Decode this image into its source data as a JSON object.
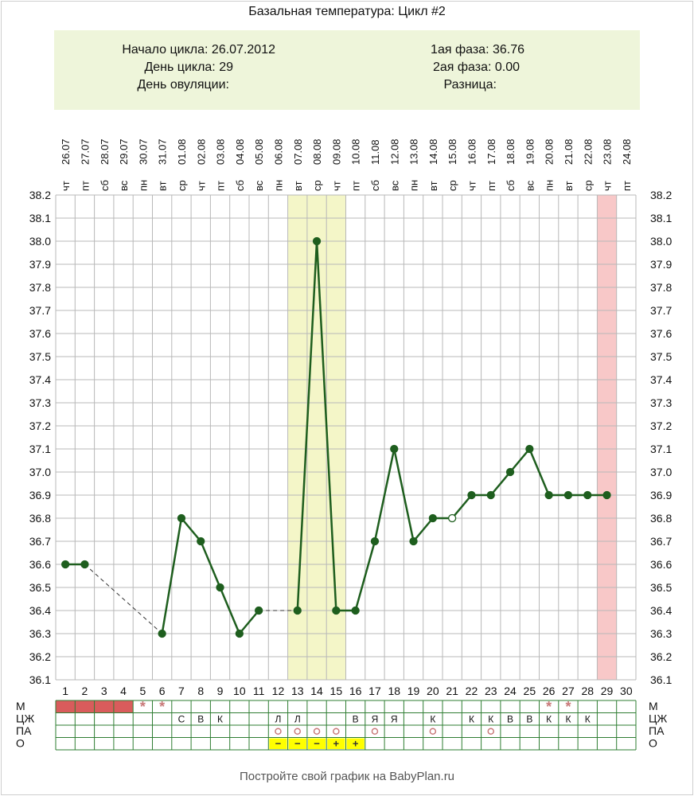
{
  "title": "Базальная температура: Цикл #2",
  "info": {
    "cycle_start": "Начало цикла: 26.07.2012",
    "cycle_day": "День цикла: 29",
    "ovulation_day": "День овуляции:",
    "phase1": "1ая фаза: 36.76",
    "phase2": "2ая фаза: 0.00",
    "difference": "Разница:"
  },
  "footer": "Постройте свой график на BabyPlan.ru",
  "colors": {
    "line": "#1e5e1e",
    "ovulation_band": "#f4f6c8",
    "today_band": "#f8c8c8",
    "menstruation": "#d95c5c",
    "marker": "#c97a7a",
    "o_marker_bg": "#ffff00",
    "grid": "#b8b8b8",
    "table_grid": "#2e7d32",
    "info_bg": "#eef5da"
  },
  "chart_data": {
    "type": "line",
    "x": [
      1,
      2,
      3,
      4,
      5,
      6,
      7,
      8,
      9,
      10,
      11,
      12,
      13,
      14,
      15,
      16,
      17,
      18,
      19,
      20,
      21,
      22,
      23,
      24,
      25,
      26,
      27,
      28,
      29,
      30
    ],
    "dates": [
      "26.07",
      "27.07",
      "28.07",
      "29.07",
      "30.07",
      "31.07",
      "01.08",
      "02.08",
      "03.08",
      "04.08",
      "05.08",
      "06.08",
      "07.08",
      "08.08",
      "09.08",
      "10.08",
      "11.08",
      "12.08",
      "13.08",
      "14.08",
      "15.08",
      "16.08",
      "17.08",
      "18.08",
      "19.08",
      "20.08",
      "21.08",
      "22.08",
      "23.08",
      "24.08"
    ],
    "weekdays": [
      "чт",
      "пт",
      "сб",
      "вс",
      "пн",
      "вт",
      "ср",
      "чт",
      "пт",
      "сб",
      "вс",
      "пн",
      "вт",
      "ср",
      "чт",
      "пт",
      "сб",
      "вс",
      "пн",
      "вт",
      "ср",
      "чт",
      "пт",
      "сб",
      "вс",
      "пн",
      "вт",
      "ср",
      "чт",
      "пт"
    ],
    "series": [
      {
        "values": [
          36.6,
          36.6,
          null,
          null,
          null,
          36.3,
          36.8,
          36.7,
          36.5,
          36.3,
          36.4,
          null,
          36.4,
          38.0,
          36.4,
          36.4,
          36.7,
          37.1,
          36.7,
          36.8,
          36.8,
          36.9,
          36.9,
          37.0,
          37.1,
          36.9,
          36.9,
          36.9,
          36.9,
          null
        ]
      }
    ],
    "open_points": [
      21
    ],
    "ylim": [
      36.1,
      38.2
    ],
    "yticks": [
      "36.1",
      "36.2",
      "36.3",
      "36.4",
      "36.5",
      "36.6",
      "36.7",
      "36.8",
      "36.9",
      "37.0",
      "37.1",
      "37.2",
      "37.3",
      "37.4",
      "37.5",
      "37.6",
      "37.7",
      "37.8",
      "37.9",
      "38.0",
      "38.1",
      "38.2"
    ],
    "highlight_ovulation_days": [
      13,
      15
    ],
    "highlight_current_day": 29,
    "grid": true
  },
  "table": {
    "row_labels": [
      "М",
      "ЦЖ",
      "ПА",
      "О"
    ],
    "menstruation_days": [
      1,
      2,
      3,
      4
    ],
    "m_stars": [
      5,
      6,
      26,
      27
    ],
    "m_star_symbol": "*",
    "cz": {
      "7": "С",
      "8": "В",
      "9": "К",
      "12": "Л",
      "13": "Л",
      "16": "В",
      "17": "Я",
      "18": "Я",
      "20": "К",
      "22": "К",
      "23": "К",
      "24": "В",
      "25": "В",
      "26": "К",
      "27": "К",
      "28": "К"
    },
    "pa_days": [
      12,
      13,
      14,
      15,
      17,
      20,
      23
    ],
    "pa_symbol": "○",
    "o": {
      "12": "−",
      "13": "−",
      "14": "−",
      "15": "+",
      "16": "+"
    }
  }
}
